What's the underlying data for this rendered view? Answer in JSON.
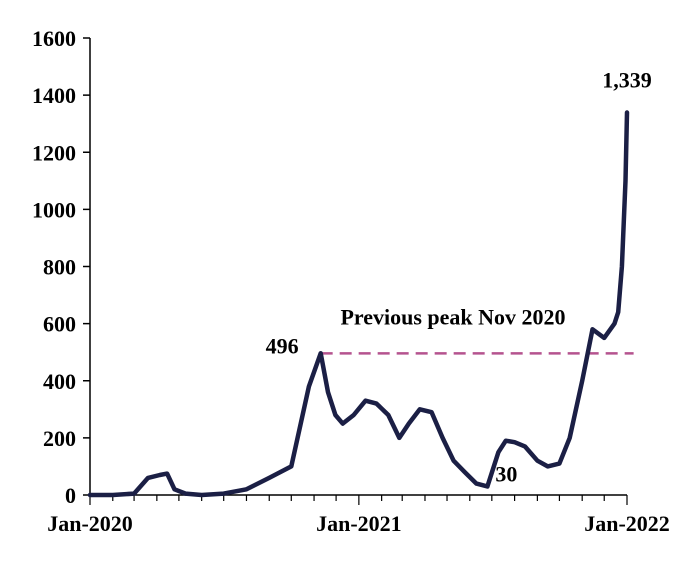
{
  "chart_data": {
    "type": "line",
    "title": "",
    "xlabel": "",
    "ylabel": "",
    "ylim": [
      0,
      1600
    ],
    "yticks": [
      0,
      200,
      400,
      600,
      800,
      1000,
      1200,
      1400,
      1600
    ],
    "yticks_labels": [
      "0",
      "200",
      "400",
      "600",
      "800",
      "1000",
      "1200",
      "1400",
      "1600"
    ],
    "xlim": [
      "2020-01-01",
      "2022-01-01"
    ],
    "xtick_labels": [
      {
        "date": "2020-01-01",
        "label": "Jan-2020"
      },
      {
        "date": "2021-01-01",
        "label": "Jan-2021"
      },
      {
        "date": "2022-01-01",
        "label": "Jan-2022"
      }
    ],
    "grid": false,
    "legend": "none",
    "series_color": "#1b1f45",
    "reference_color": "#b5538f",
    "series": [
      {
        "x": [
          "2020-01-01",
          "2020-02-01",
          "2020-03-01",
          "2020-03-20",
          "2020-04-05",
          "2020-04-15",
          "2020-04-25",
          "2020-05-10",
          "2020-06-01",
          "2020-07-01",
          "2020-08-01",
          "2020-09-01",
          "2020-10-01",
          "2020-10-25",
          "2020-11-10",
          "2020-11-20",
          "2020-11-30",
          "2020-12-10",
          "2020-12-25",
          "2021-01-10",
          "2021-01-25",
          "2021-02-10",
          "2021-02-25",
          "2021-03-10",
          "2021-03-25",
          "2021-04-10",
          "2021-04-25",
          "2021-05-10",
          "2021-05-25",
          "2021-06-10",
          "2021-06-25",
          "2021-07-10",
          "2021-07-20",
          "2021-08-01",
          "2021-08-15",
          "2021-09-01",
          "2021-09-15",
          "2021-10-01",
          "2021-10-15",
          "2021-11-01",
          "2021-11-15",
          "2021-12-01",
          "2021-12-15",
          "2021-12-20",
          "2021-12-25",
          "2021-12-30",
          "2022-01-01"
        ],
        "values": [
          0,
          0,
          5,
          60,
          70,
          75,
          20,
          5,
          0,
          5,
          20,
          60,
          100,
          380,
          496,
          360,
          280,
          250,
          280,
          330,
          320,
          280,
          200,
          250,
          300,
          290,
          200,
          120,
          80,
          40,
          30,
          150,
          190,
          185,
          170,
          120,
          100,
          110,
          200,
          400,
          580,
          550,
          600,
          640,
          800,
          1100,
          1339
        ]
      }
    ],
    "reference_line": {
      "y": 496,
      "x_start": "2020-11-10",
      "x_end": "2022-01-10",
      "label": "Previous peak Nov 2020",
      "style": "dashed"
    },
    "annotations": [
      {
        "label": "496",
        "x": "2020-11-10",
        "y": 496
      },
      {
        "label": "30",
        "x": "2021-06-25",
        "y": 30
      },
      {
        "label": "1,339",
        "x": "2022-01-01",
        "y": 1339
      }
    ]
  }
}
